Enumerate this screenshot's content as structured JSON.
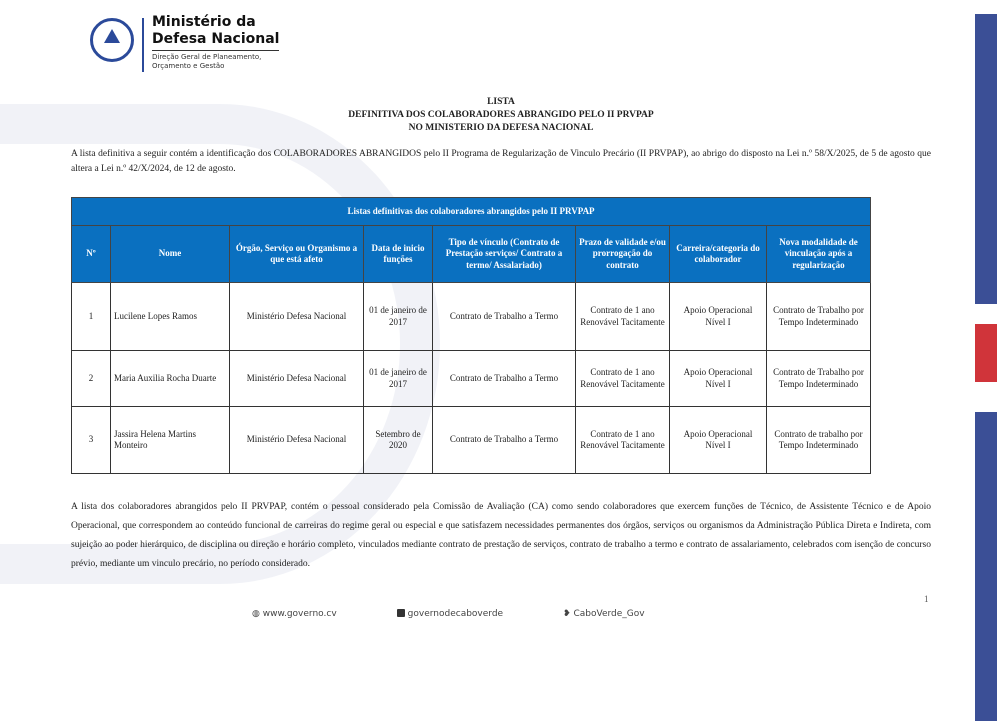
{
  "logo": {
    "line1": "Ministério da",
    "line2": "Defesa Nacional",
    "line3": "Direção Geral de Planeamento,",
    "line4": "Orçamento e Gestão"
  },
  "title": [
    "LISTA",
    "DEFINITIVA DOS COLABORADORES ABRANGIDO PELO II PRVPAP",
    "NO MINISTERIO DA DEFESA NACIONAL"
  ],
  "intro": "A lista definitiva a seguir contém a identificação dos COLABORADORES ABRANGIDOS pelo II Programa de Regularização de Vinculo Precário (II PRVPAP), ao abrigo do disposto na Lei n.º 58/X/2025, de 5 de agosto que altera a Lei n.º 42/X/2024, de 12 de agosto.",
  "table": {
    "caption": "Listas definitivas dos colaboradores abrangidos pelo II PRVPAP",
    "headers": [
      "Nº",
      "Nome",
      "Órgão, Serviço ou Organismo a que está afeto",
      "Data de inicio funções",
      "Tipo de vínculo (Contrato de Prestação serviços/ Contrato a termo/ Assalariado)",
      "Prazo de validade e/ou prorrogação do contrato",
      "Carreira/categoria do colaborador",
      "Nova modalidade de vinculação após a regularização"
    ],
    "rows": [
      [
        "1",
        "Lucilene Lopes Ramos",
        "Ministério Defesa Nacional",
        "01 de janeiro de 2017",
        "Contrato de Trabalho a Termo",
        "Contrato  de 1 ano Renovável Tacitamente",
        "Apoio Operacional Nível I",
        "Contrato de Trabalho por Tempo Indeterminado"
      ],
      [
        "2",
        "Maria Auxilia Rocha Duarte",
        "Ministério Defesa Nacional",
        "01 de janeiro de 2017",
        "Contrato de Trabalho a Termo",
        "Contrato  de 1 ano Renovável Tacitamente",
        "Apoio Operacional Nível I",
        "Contrato de Trabalho por Tempo Indeterminado"
      ],
      [
        "3",
        "Jassira Helena Martins Monteiro",
        "Ministério Defesa Nacional",
        "Setembro de 2020",
        "Contrato de Trabalho a Termo",
        "Contrato  de 1 ano Renovável Tacitamente",
        "Apoio Operacional Nível I",
        "Contrato de trabalho por Tempo Indeterminado"
      ]
    ]
  },
  "closing": "A lista dos colaboradores abrangidos pelo II PRVPAP, contém o pessoal considerado pela Comissão de Avaliação (CA) como sendo colaboradores que exercem funções de Técnico, de Assistente Técnico e de Apoio Operacional, que correspondem ao conteúdo funcional de carreiras do regime geral ou especial e que satisfazem necessidades permanentes dos órgãos, serviços ou organismos da Administração Pública Direta e Indireta, com sujeição ao poder hierárquico, de disciplina ou direção e horário completo, vinculados mediante contrato de prestação de serviços, contrato de trabalho a termo e contrato de assalariamento, celebrados com isenção de concurso prévio, mediante um vinculo precário, no período considerado.",
  "page_number": "1",
  "footer": {
    "website": "www.governo.cv",
    "facebook": "governodecaboverde",
    "twitter": "CaboVerde_Gov"
  },
  "colors": {
    "header_blue": "#0a70c0",
    "stripe_blue": "#3b4f96",
    "stripe_red": "#d0343a"
  }
}
